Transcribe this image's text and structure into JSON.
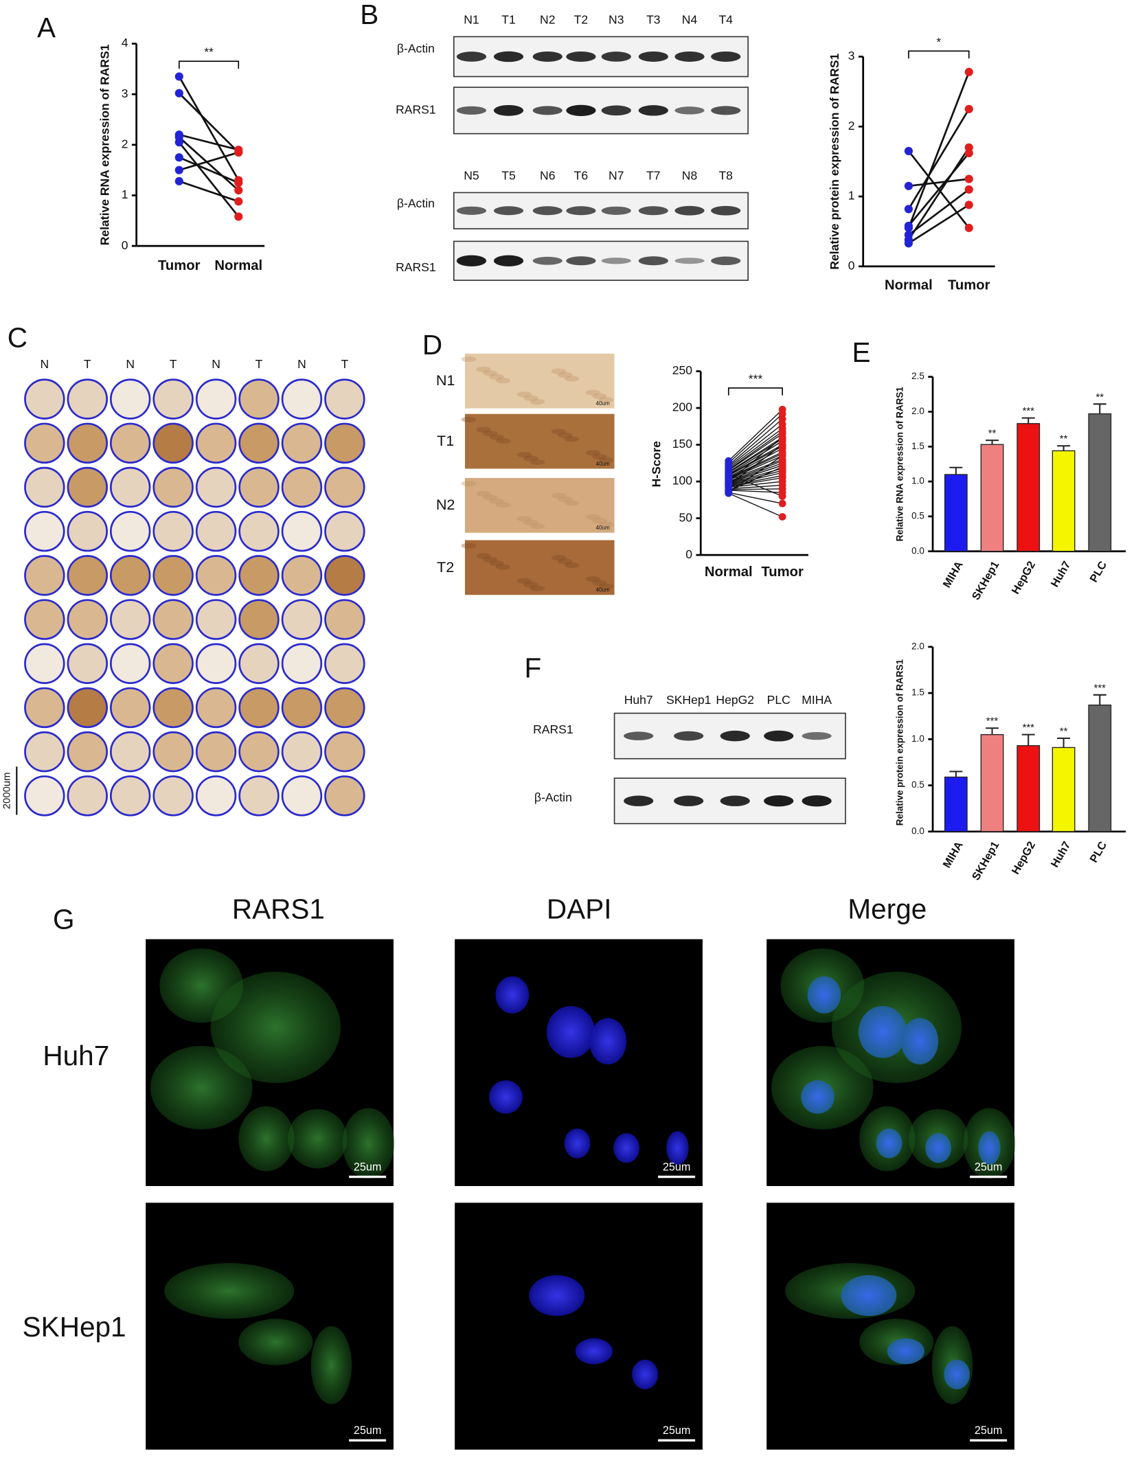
{
  "panel_labels": [
    "A",
    "B",
    "C",
    "D",
    "E",
    "F",
    "G"
  ],
  "chart_data": [
    {
      "type": "paired",
      "y_label": "Relative RNA expression of RARS1",
      "categories": [
        "Tumor",
        "Normal"
      ],
      "colors": [
        "#2323d6",
        "#e01e1e"
      ],
      "pairs": [
        [
          3.35,
          1.3
        ],
        [
          3.02,
          1.85
        ],
        [
          2.2,
          1.9
        ],
        [
          2.15,
          1.1
        ],
        [
          2.05,
          0.58
        ],
        [
          1.75,
          1.25
        ],
        [
          1.5,
          1.85
        ],
        [
          1.28,
          0.88
        ]
      ],
      "ylim": [
        0,
        4
      ],
      "yticks": [
        0,
        1,
        2,
        3,
        4
      ],
      "significance": "**"
    },
    {
      "type": "paired",
      "y_label": "Relative protein expression of RARS1",
      "categories": [
        "Normal",
        "Tumor"
      ],
      "colors": [
        "#2323d6",
        "#e01e1e"
      ],
      "pairs": [
        [
          1.65,
          0.55
        ],
        [
          1.15,
          1.25
        ],
        [
          0.82,
          2.25
        ],
        [
          0.58,
          1.62
        ],
        [
          0.55,
          2.78
        ],
        [
          0.45,
          1.1
        ],
        [
          0.38,
          1.7
        ],
        [
          0.33,
          0.88
        ]
      ],
      "ylim": [
        0,
        3
      ],
      "yticks": [
        0,
        1,
        2,
        3
      ],
      "significance": "*"
    },
    {
      "type": "paired",
      "y_label": "H-Score",
      "categories": [
        "Normal",
        "Tumor"
      ],
      "colors": [
        "#2323d6",
        "#e01e1e"
      ],
      "pairs": [
        [
          128,
          198
        ],
        [
          125,
          192
        ],
        [
          122,
          185
        ],
        [
          120,
          178
        ],
        [
          118,
          172
        ],
        [
          116,
          168
        ],
        [
          115,
          165
        ],
        [
          113,
          160
        ],
        [
          112,
          158
        ],
        [
          110,
          155
        ],
        [
          109,
          150
        ],
        [
          108,
          148
        ],
        [
          106,
          145
        ],
        [
          105,
          140
        ],
        [
          104,
          138
        ],
        [
          103,
          135
        ],
        [
          102,
          130
        ],
        [
          100,
          128
        ],
        [
          99,
          125
        ],
        [
          98,
          122
        ],
        [
          97,
          118
        ],
        [
          96,
          115
        ],
        [
          95,
          112
        ],
        [
          94,
          108
        ],
        [
          93,
          105
        ],
        [
          92,
          100
        ],
        [
          90,
          95
        ],
        [
          89,
          90
        ],
        [
          88,
          85
        ],
        [
          87,
          120
        ],
        [
          86,
          135
        ],
        [
          85,
          70
        ],
        [
          84,
          52
        ],
        [
          110,
          80
        ],
        [
          100,
          160
        ],
        [
          95,
          150
        ]
      ],
      "ylim": [
        0,
        250
      ],
      "yticks": [
        0,
        50,
        100,
        150,
        200,
        250
      ],
      "significance": "***"
    },
    {
      "type": "bar",
      "y_label": "Relative RNA expression of RARS1",
      "categories": [
        "MIHA",
        "SKHep1",
        "HepG2",
        "Huh7",
        "PLC"
      ],
      "values": [
        1.1,
        1.53,
        1.83,
        1.44,
        1.97
      ],
      "errors": [
        0.1,
        0.06,
        0.08,
        0.07,
        0.14
      ],
      "colors": [
        "#1c1cf0",
        "#f08080",
        "#ee1111",
        "#f5f500",
        "#666666"
      ],
      "significance": [
        null,
        "**",
        "***",
        "**",
        "**"
      ],
      "ylim": [
        0,
        2.5
      ],
      "yticks": [
        {
          "value": 0,
          "label": "0.0"
        },
        {
          "value": 0.5,
          "label": "0.5"
        },
        {
          "value": 1,
          "label": "1.0"
        },
        {
          "value": 1.5,
          "label": "1.5"
        },
        {
          "value": 2,
          "label": "2.0"
        },
        {
          "value": 2.5,
          "label": "2.5"
        }
      ]
    },
    {
      "type": "bar",
      "y_label": "Relative protein expression of RARS1",
      "categories": [
        "MIHA",
        "SKHep1",
        "HepG2",
        "Huh7",
        "PLC"
      ],
      "values": [
        0.59,
        1.05,
        0.93,
        0.91,
        1.37
      ],
      "errors": [
        0.06,
        0.07,
        0.12,
        0.1,
        0.11
      ],
      "colors": [
        "#1c1cf0",
        "#f08080",
        "#ee1111",
        "#f5f500",
        "#666666"
      ],
      "significance": [
        null,
        "***",
        "***",
        "**",
        "***"
      ],
      "ylim": [
        0,
        2
      ],
      "yticks": [
        {
          "value": 0,
          "label": "0.0"
        },
        {
          "value": 0.5,
          "label": "0.5"
        },
        {
          "value": 1,
          "label": "1.0"
        },
        {
          "value": 1.5,
          "label": "1.5"
        },
        {
          "value": 2,
          "label": "2.0"
        }
      ]
    }
  ],
  "blot_b": {
    "lanes_top": [
      "N1",
      "T1",
      "N2",
      "T2",
      "N3",
      "T3",
      "N4",
      "T4"
    ],
    "lanes_bottom": [
      "N5",
      "T5",
      "N6",
      "T6",
      "N7",
      "T7",
      "N8",
      "T8"
    ],
    "rows": [
      "β-Actin",
      "RARS1"
    ]
  },
  "tma": {
    "columns": [
      "N",
      "T",
      "N",
      "T",
      "N",
      "T",
      "N",
      "T"
    ],
    "scale_label": "2000um"
  },
  "ihc_d": {
    "rows": [
      "N1",
      "T1",
      "N2",
      "T2"
    ],
    "scale_label": "40um"
  },
  "blot_f": {
    "lanes": [
      "Huh7",
      "SKHep1",
      "HepG2",
      "PLC",
      "MIHA"
    ],
    "rows": [
      "RARS1",
      "β-Actin"
    ]
  },
  "if_g": {
    "channels": [
      "RARS1",
      "DAPI",
      "Merge"
    ],
    "cell_lines": [
      "Huh7",
      "SKHep1"
    ],
    "scale_label": "25um"
  }
}
